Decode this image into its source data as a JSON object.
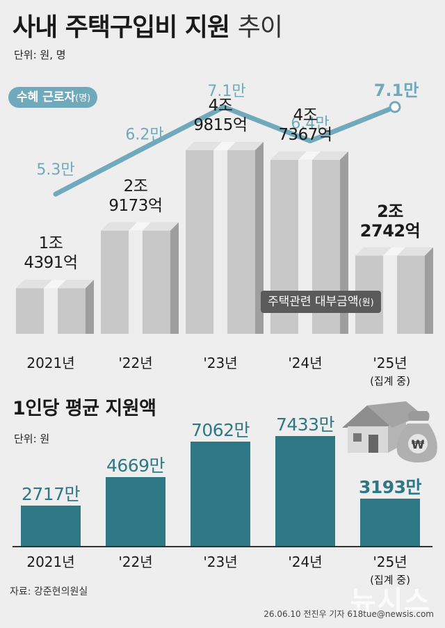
{
  "header": {
    "title": "사내 주택구입비 지원",
    "title_suffix": "추이",
    "unit": "단위: 원, 명"
  },
  "chart_data": [
    {
      "type": "bar",
      "categories": [
        "2021년",
        "'22년",
        "'23년",
        "'24년",
        "'25년"
      ],
      "category_notes": [
        "",
        "",
        "",
        "",
        "(집계 중)"
      ],
      "series": [
        {
          "name": "주택관련 대부금액",
          "name_unit": "(원)",
          "values_won": [
            1439100000000,
            2917300000000,
            4981500000000,
            4736700000000,
            2274200000000
          ],
          "labels_top": [
            "1조",
            "2조",
            "4조",
            "4조",
            "2조"
          ],
          "labels_bottom": [
            "4391억",
            "9173억",
            "9815억",
            "7367억",
            "2742억"
          ]
        },
        {
          "name": "수혜 근로자",
          "name_unit": "(명)",
          "values_man": [
            5.3,
            6.2,
            7.1,
            6.4,
            7.1
          ],
          "labels": [
            "5.3만",
            "6.2만",
            "7.1만",
            "6.4만",
            "7.1만"
          ]
        }
      ],
      "bar_style": "boxes",
      "line_color": "#6fa9bb"
    },
    {
      "type": "bar",
      "title": "1인당 평균 지원액",
      "unit": "단위: 원",
      "categories": [
        "2021년",
        "'22년",
        "'23년",
        "'24년",
        "'25년"
      ],
      "category_notes": [
        "",
        "",
        "",
        "",
        "(집계 중)"
      ],
      "values_man": [
        2717,
        4669,
        7062,
        7433,
        3193
      ],
      "labels": [
        "2717만",
        "4669만",
        "7062만",
        "7433만",
        "3193만"
      ],
      "bar_color": "#2e7784"
    }
  ],
  "footer": {
    "source": "자료: 강준현의원실",
    "credit": "26.06.10 전진우 기자 618tue@newsis.com",
    "watermark": "뉴시스"
  },
  "icons": [
    "house-icon",
    "money-bag-icon"
  ],
  "colors": {
    "teal": "#2e7784",
    "light_teal": "#6fa9bb",
    "box_gray": "#c8c8c8"
  }
}
